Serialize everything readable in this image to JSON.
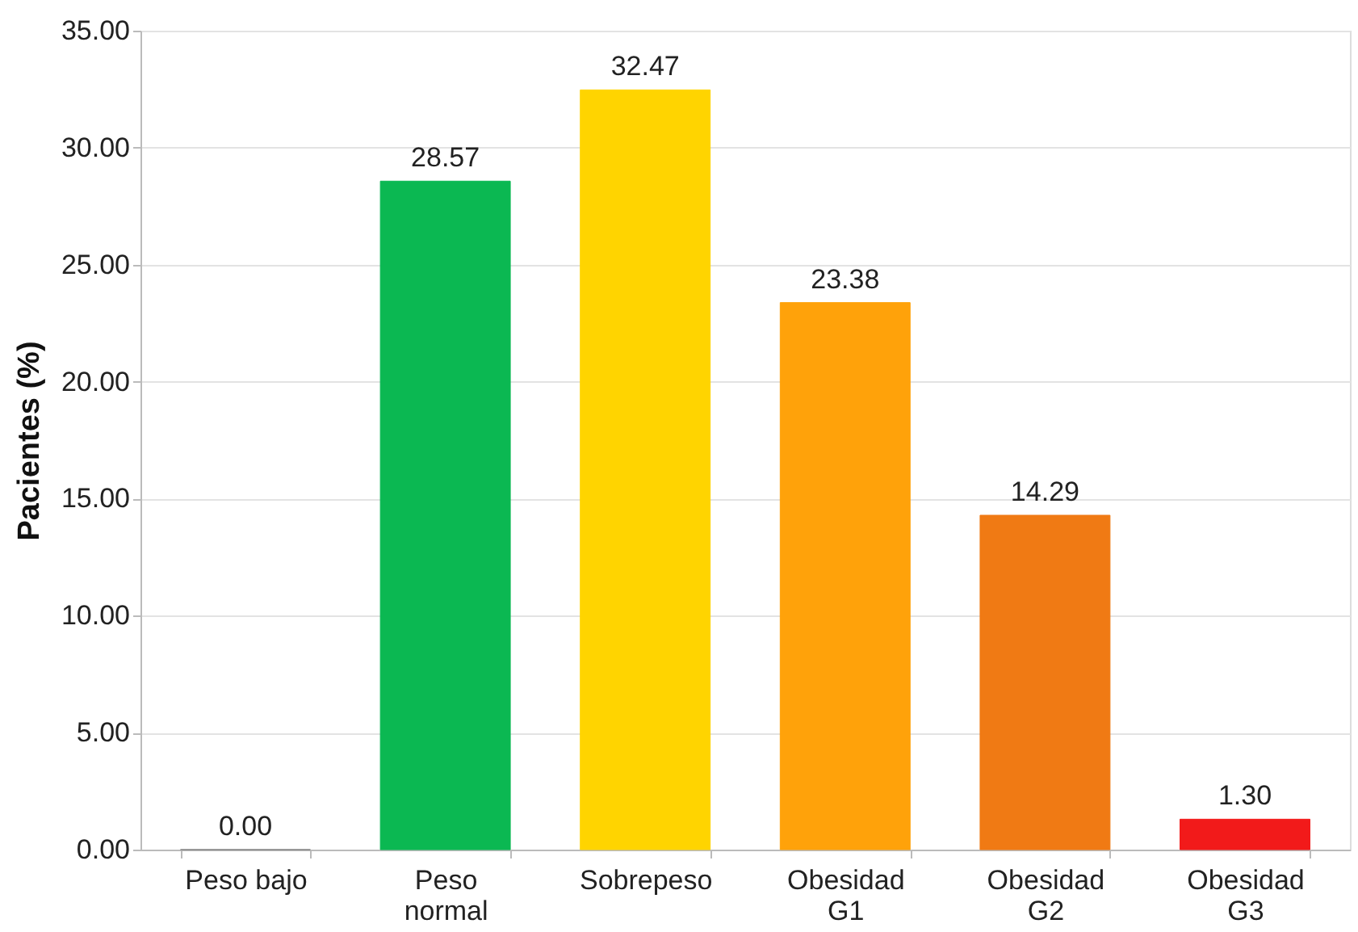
{
  "chart_data": {
    "type": "bar",
    "ylabel": "Pacientes (%)",
    "categories": [
      "Peso bajo",
      "Peso normal",
      "Sobrepeso",
      "Obesidad G1",
      "Obesidad G2",
      "Obesidad G3"
    ],
    "values": [
      0.0,
      28.57,
      32.47,
      23.38,
      14.29,
      1.3
    ],
    "colors": [
      "#7f7f7f",
      "#0bb852",
      "#ffd400",
      "#ffa20a",
      "#f07a14",
      "#f21a1a"
    ],
    "ylim": [
      0,
      35
    ],
    "yticks": [
      {
        "value": 0,
        "label": "0.00"
      },
      {
        "value": 5,
        "label": "5.00"
      },
      {
        "value": 10,
        "label": "10.00"
      },
      {
        "value": 15,
        "label": "15.00"
      },
      {
        "value": 20,
        "label": "20.00"
      },
      {
        "value": 25,
        "label": "25.00"
      },
      {
        "value": 30,
        "label": "30.00"
      },
      {
        "value": 35,
        "label": "35.00"
      }
    ],
    "value_labels": [
      "0.00",
      "28.57",
      "32.47",
      "23.38",
      "14.29",
      "1.30"
    ],
    "grid": "y"
  }
}
